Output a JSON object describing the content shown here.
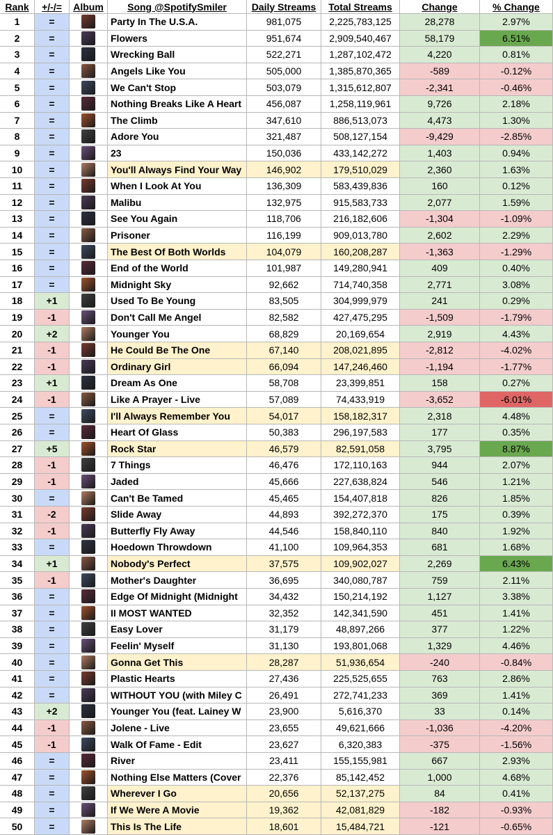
{
  "table": {
    "header": [
      "Rank",
      "+/-/=",
      "Album",
      "Song @SpotifySmiler",
      "Daily Streams",
      "Total Streams",
      "Change",
      "% Change"
    ],
    "rows": [
      [
        "1",
        "=",
        "Party In The U.S.A.",
        "981,075",
        "2,225,783,125",
        "28,278",
        "2.97%"
      ],
      [
        "2",
        "=",
        "Flowers",
        "951,674",
        "2,909,540,467",
        "58,179",
        "6.51%"
      ],
      [
        "3",
        "=",
        "Wrecking Ball",
        "522,271",
        "1,287,102,472",
        "4,220",
        "0.81%"
      ],
      [
        "4",
        "=",
        "Angels Like You",
        "505,000",
        "1,385,870,365",
        "-589",
        "-0.12%"
      ],
      [
        "5",
        "=",
        "We Can't Stop",
        "503,079",
        "1,315,612,807",
        "-2,341",
        "-0.46%"
      ],
      [
        "6",
        "=",
        "Nothing Breaks Like A Heart",
        "456,087",
        "1,258,119,961",
        "9,726",
        "2.18%"
      ],
      [
        "7",
        "=",
        "The Climb",
        "347,610",
        "886,513,073",
        "4,473",
        "1.30%"
      ],
      [
        "8",
        "=",
        "Adore You",
        "321,487",
        "508,127,154",
        "-9,429",
        "-2.85%"
      ],
      [
        "9",
        "=",
        "23",
        "150,036",
        "433,142,272",
        "1,403",
        "0.94%"
      ],
      [
        "10",
        "=",
        "You'll Always Find Your Way",
        "146,902",
        "179,510,029",
        "2,360",
        "1.63%"
      ],
      [
        "11",
        "=",
        "When I Look At You",
        "136,309",
        "583,439,836",
        "160",
        "0.12%"
      ],
      [
        "12",
        "=",
        "Malibu",
        "132,975",
        "915,583,733",
        "2,077",
        "1.59%"
      ],
      [
        "13",
        "=",
        "See You Again",
        "118,706",
        "216,182,606",
        "-1,304",
        "-1.09%"
      ],
      [
        "14",
        "=",
        "Prisoner",
        "116,199",
        "909,013,780",
        "2,602",
        "2.29%"
      ],
      [
        "15",
        "=",
        "The Best Of Both Worlds",
        "104,079",
        "160,208,287",
        "-1,363",
        "-1.29%"
      ],
      [
        "16",
        "=",
        "End of the World",
        "101,987",
        "149,280,941",
        "409",
        "0.40%"
      ],
      [
        "17",
        "=",
        "Midnight Sky",
        "92,662",
        "714,740,358",
        "2,771",
        "3.08%"
      ],
      [
        "18",
        "+1",
        "Used To Be Young",
        "83,505",
        "304,999,979",
        "241",
        "0.29%"
      ],
      [
        "19",
        "-1",
        "Don't Call Me Angel",
        "82,582",
        "427,475,295",
        "-1,509",
        "-1.79%"
      ],
      [
        "20",
        "+2",
        "Younger You",
        "68,829",
        "20,169,654",
        "2,919",
        "4.43%"
      ],
      [
        "21",
        "-1",
        "He Could Be The One",
        "67,140",
        "208,021,895",
        "-2,812",
        "-4.02%"
      ],
      [
        "22",
        "-1",
        "Ordinary Girl",
        "66,094",
        "147,246,460",
        "-1,194",
        "-1.77%"
      ],
      [
        "23",
        "+1",
        "Dream As One",
        "58,708",
        "23,399,851",
        "158",
        "0.27%"
      ],
      [
        "24",
        "-1",
        "Like A Prayer - Live",
        "57,089",
        "74,433,919",
        "-3,652",
        "-6.01%"
      ],
      [
        "25",
        "=",
        "I'll Always Remember You",
        "54,017",
        "158,182,317",
        "2,318",
        "4.48%"
      ],
      [
        "26",
        "=",
        "Heart Of Glass",
        "50,383",
        "296,197,583",
        "177",
        "0.35%"
      ],
      [
        "27",
        "+5",
        "Rock Star",
        "46,579",
        "82,591,058",
        "3,795",
        "8.87%"
      ],
      [
        "28",
        "-1",
        "7 Things",
        "46,476",
        "172,110,163",
        "944",
        "2.07%"
      ],
      [
        "29",
        "-1",
        "Jaded",
        "45,666",
        "227,638,824",
        "546",
        "1.21%"
      ],
      [
        "30",
        "=",
        "Can't Be Tamed",
        "45,465",
        "154,407,818",
        "826",
        "1.85%"
      ],
      [
        "31",
        "-2",
        "Slide Away",
        "44,893",
        "392,272,370",
        "175",
        "0.39%"
      ],
      [
        "32",
        "-1",
        "Butterfly Fly Away",
        "44,546",
        "158,840,110",
        "840",
        "1.92%"
      ],
      [
        "33",
        "=",
        "Hoedown Throwdown",
        "41,100",
        "109,964,353",
        "681",
        "1.68%"
      ],
      [
        "34",
        "+1",
        "Nobody's Perfect",
        "37,575",
        "109,902,027",
        "2,269",
        "6.43%"
      ],
      [
        "35",
        "-1",
        "Mother's Daughter",
        "36,695",
        "340,080,787",
        "759",
        "2.11%"
      ],
      [
        "36",
        "=",
        "Edge Of Midnight (Midnight",
        "34,432",
        "150,214,192",
        "1,127",
        "3.38%"
      ],
      [
        "37",
        "=",
        "II MOST WANTED",
        "32,352",
        "142,341,590",
        "451",
        "1.41%"
      ],
      [
        "38",
        "=",
        "Easy Lover",
        "31,179",
        "48,897,266",
        "377",
        "1.22%"
      ],
      [
        "39",
        "=",
        "Feelin' Myself",
        "31,130",
        "193,801,068",
        "1,329",
        "4.46%"
      ],
      [
        "40",
        "=",
        "Gonna Get This",
        "28,287",
        "51,936,654",
        "-240",
        "-0.84%"
      ],
      [
        "41",
        "=",
        "Plastic Hearts",
        "27,436",
        "225,525,655",
        "763",
        "2.86%"
      ],
      [
        "42",
        "=",
        "WITHOUT YOU (with Miley C",
        "26,491",
        "272,741,233",
        "369",
        "1.41%"
      ],
      [
        "43",
        "+2",
        "Younger You (feat. Lainey W",
        "23,900",
        "5,616,370",
        "33",
        "0.14%"
      ],
      [
        "44",
        "-1",
        "Jolene - Live",
        "23,655",
        "49,621,666",
        "-1,036",
        "-4.20%"
      ],
      [
        "45",
        "-1",
        "Walk Of Fame - Edit",
        "23,627",
        "6,320,383",
        "-375",
        "-1.56%"
      ],
      [
        "46",
        "=",
        "River",
        "23,411",
        "155,155,981",
        "667",
        "2.93%"
      ],
      [
        "47",
        "=",
        "Nothing Else Matters (Cover",
        "22,376",
        "85,142,452",
        "1,000",
        "4.68%"
      ],
      [
        "48",
        "=",
        "Wherever I Go",
        "20,656",
        "52,137,275",
        "84",
        "0.41%"
      ],
      [
        "49",
        "=",
        "If We Were A Movie",
        "19,362",
        "42,081,829",
        "-182",
        "-0.93%"
      ],
      [
        "50",
        "=",
        "This Is The Life",
        "18,601",
        "15,484,721",
        "-121",
        "-0.65%"
      ]
    ]
  }
}
